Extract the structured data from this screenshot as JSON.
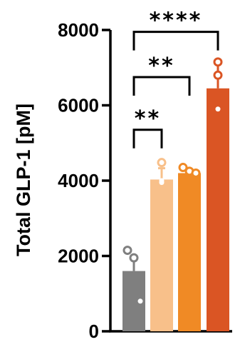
{
  "chart_data": {
    "type": "bar",
    "title": "",
    "xlabel": "",
    "ylabel": "Total GLP-1 [pM]",
    "ylim": [
      0,
      8000
    ],
    "yticks": [
      "0",
      "2000",
      "4000",
      "6000",
      "8000"
    ],
    "grid": false,
    "legend": "none",
    "categories": [
      "",
      "",
      "",
      ""
    ],
    "values": [
      1600,
      4030,
      4200,
      6450
    ],
    "errors": [
      400,
      300,
      80,
      650
    ],
    "colors": [
      "#7f7f7f",
      "#f8c08a",
      "#f08a25",
      "#da5524"
    ],
    "points": [
      [
        2150,
        1950,
        800
      ],
      [
        4480,
        4000,
        3950
      ],
      [
        4350,
        4250,
        4200
      ],
      [
        7150,
        6800,
        5900
      ]
    ],
    "significance": [
      {
        "from": 0,
        "to": 3,
        "label": "****",
        "y": 7950
      },
      {
        "from": 0,
        "to": 2,
        "label": "**",
        "y": 6750
      },
      {
        "from": 0,
        "to": 1,
        "label": "**",
        "y": 5350
      }
    ]
  }
}
